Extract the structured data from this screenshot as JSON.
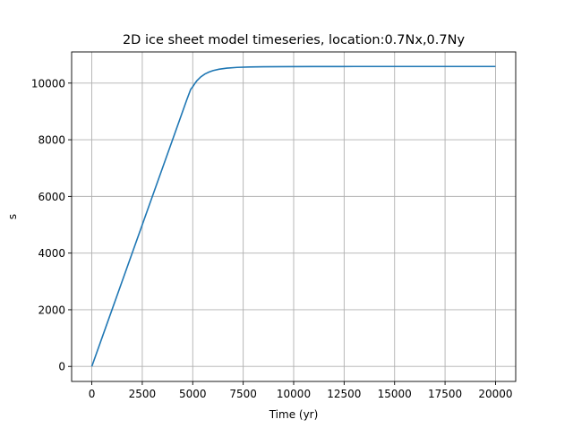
{
  "chart_data": {
    "type": "line",
    "title": "2D ice sheet model timeseries, location:0.7Nx,0.7Ny",
    "xlabel": "Time (yr)",
    "ylabel": "s",
    "xlim": [
      -1000,
      21000
    ],
    "ylim": [
      -530,
      11100
    ],
    "xticks": [
      0,
      2500,
      5000,
      7500,
      10000,
      12500,
      15000,
      17500,
      20000
    ],
    "xtick_labels": [
      "0",
      "2500",
      "5000",
      "7500",
      "10000",
      "12500",
      "15000",
      "17500",
      "20000"
    ],
    "yticks": [
      0,
      2000,
      4000,
      6000,
      8000,
      10000
    ],
    "ytick_labels": [
      "0",
      "2000",
      "4000",
      "6000",
      "8000",
      "10000"
    ],
    "grid": true,
    "series": [
      {
        "color": "#1f77b4",
        "x": [
          0,
          1000,
          2000,
          3000,
          4000,
          4700,
          4900,
          5000,
          5100,
          5200,
          5400,
          5600,
          5800,
          6000,
          6300,
          6700,
          7200,
          7800,
          8500,
          9500,
          11000,
          13000,
          16000,
          20000
        ],
        "y": [
          0,
          2000,
          4000,
          6000,
          8000,
          9400,
          9780,
          9870,
          9980,
          10080,
          10220,
          10320,
          10390,
          10440,
          10490,
          10530,
          10555,
          10570,
          10578,
          10582,
          10585,
          10586,
          10586,
          10586
        ]
      }
    ]
  }
}
